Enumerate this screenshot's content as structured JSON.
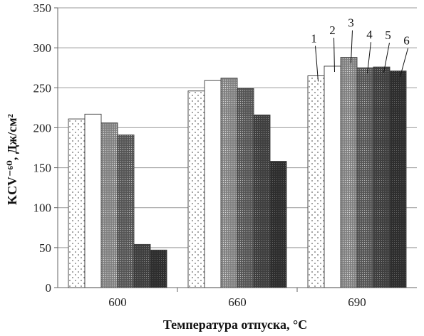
{
  "chart_data": {
    "type": "bar",
    "categories": [
      "600",
      "660",
      "690"
    ],
    "series": [
      {
        "name": "1",
        "values": [
          211,
          246,
          265
        ]
      },
      {
        "name": "2",
        "values": [
          217,
          259,
          277
        ]
      },
      {
        "name": "3",
        "values": [
          206,
          262,
          288
        ]
      },
      {
        "name": "4",
        "values": [
          191,
          249,
          275
        ]
      },
      {
        "name": "5",
        "values": [
          54,
          216,
          276
        ]
      },
      {
        "name": "6",
        "values": [
          47,
          158,
          271
        ]
      }
    ],
    "title": "",
    "xlabel": "Температура  отпуска, °С",
    "ylabel": "KCV⁻⁶⁰, Дж/см²",
    "ylim": [
      0,
      350
    ],
    "yticks": [
      0,
      50,
      100,
      150,
      200,
      250,
      300,
      350
    ],
    "grid": true,
    "series_fills": [
      "sparse-dots",
      "white",
      "fine-dots",
      "medium-dots",
      "dense-dots",
      "dark-dots"
    ]
  }
}
